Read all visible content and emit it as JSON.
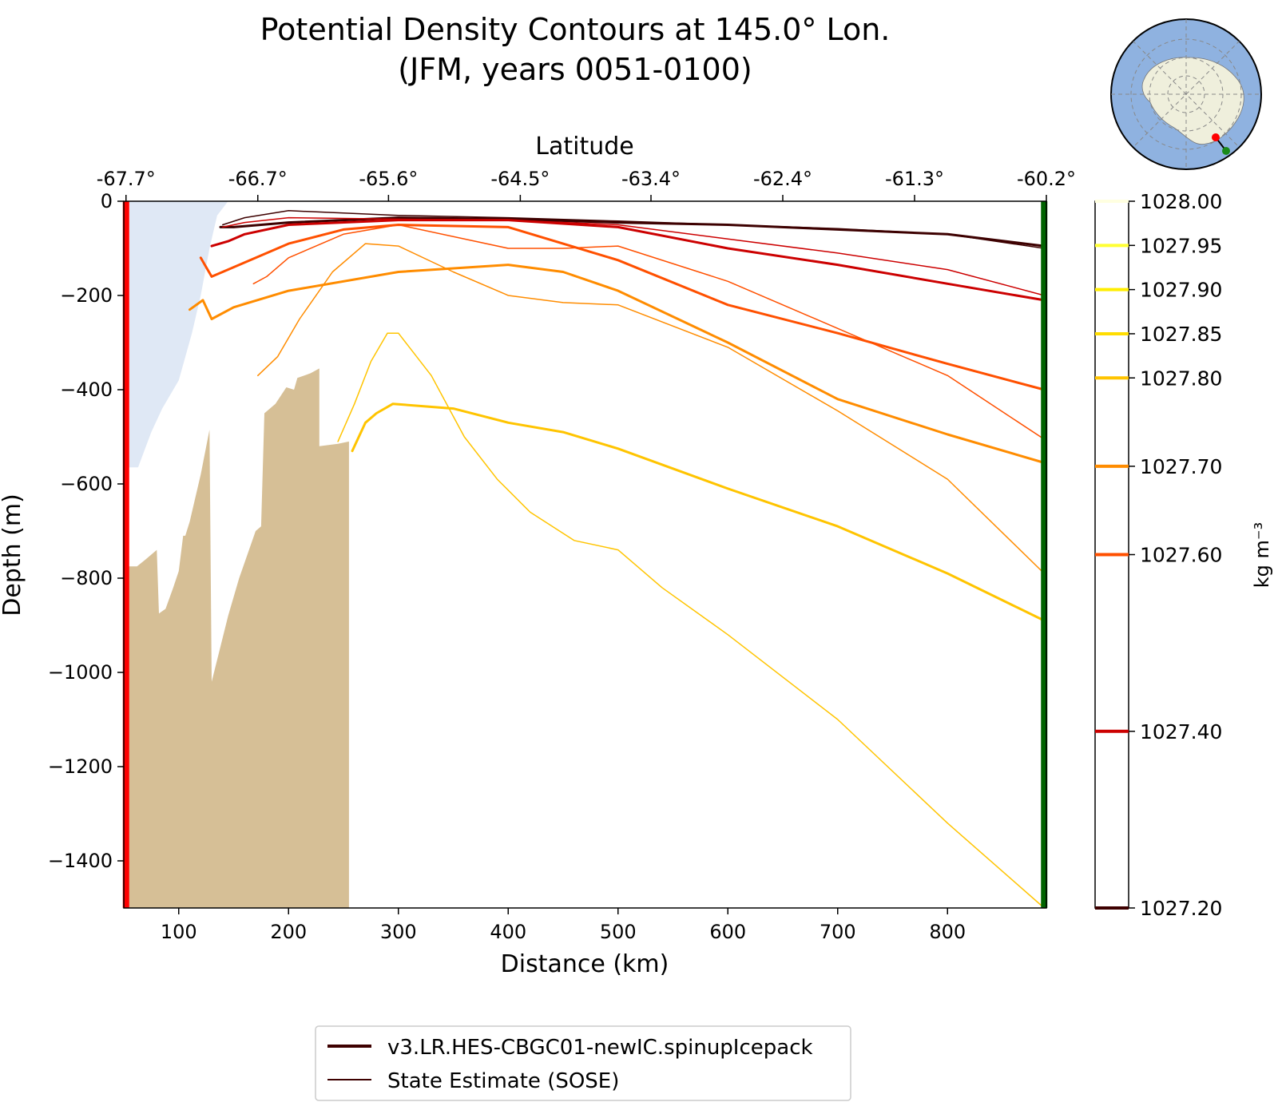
{
  "chart_data": {
    "type": "line",
    "title": "Potential Density Contours at 145.0° Lon.",
    "subtitle": "(JFM, years 0051-0100)",
    "xlabel": "Distance (km)",
    "ylabel": "Depth (m)",
    "top_axis_label": "Latitude",
    "xlim": [
      50,
      890
    ],
    "ylim": [
      -1500,
      0
    ],
    "x_ticks": [
      100,
      200,
      300,
      400,
      500,
      600,
      700,
      800
    ],
    "x_tick_labels": [
      "100",
      "200",
      "300",
      "400",
      "500",
      "600",
      "700",
      "800"
    ],
    "y_ticks": [
      0,
      -200,
      -400,
      -600,
      -800,
      -1000,
      -1200,
      -1400
    ],
    "y_tick_labels": [
      "0",
      "−200",
      "−400",
      "−600",
      "−800",
      "−1000",
      "−1200",
      "−1400"
    ],
    "lat_ticks_km": [
      52,
      172,
      291,
      411,
      530,
      650,
      770,
      890
    ],
    "lat_tick_labels": [
      "-67.7°",
      "-66.7°",
      "-65.6°",
      "-64.5°",
      "-63.4°",
      "-62.4°",
      "-61.3°",
      "-60.2°"
    ],
    "grid": false,
    "colorbar": {
      "label": "kg m⁻³",
      "range": [
        1027.2,
        1028.0
      ],
      "ticks": [
        {
          "value": 1028.0,
          "label": "1028.00",
          "color": "#ffffe0"
        },
        {
          "value": 1027.95,
          "label": "1027.95",
          "color": "#ffff33"
        },
        {
          "value": 1027.9,
          "label": "1027.90",
          "color": "#ffee00"
        },
        {
          "value": 1027.85,
          "label": "1027.85",
          "color": "#ffdd00"
        },
        {
          "value": 1027.8,
          "label": "1027.80",
          "color": "#ffc400"
        },
        {
          "value": 1027.7,
          "label": "1027.70",
          "color": "#ff8c00"
        },
        {
          "value": 1027.6,
          "label": "1027.60",
          "color": "#ff5000"
        },
        {
          "value": 1027.4,
          "label": "1027.40",
          "color": "#cc0000"
        },
        {
          "value": 1027.2,
          "label": "1027.20",
          "color": "#3d0000"
        }
      ]
    },
    "legend": {
      "placement": "bottom-center",
      "entries": [
        {
          "label": "v3.LR.HES-CBGC01-newIC.spinupIcepack",
          "color": "#3d0000",
          "style": "thick"
        },
        {
          "label": "State Estimate (SOSE)",
          "color": "#3d0000",
          "style": "thin"
        }
      ]
    },
    "section_markers": {
      "start_color": "#ff0000",
      "end_color": "#006400",
      "start_km": 52,
      "end_km": 888
    },
    "ice_shelf_color": "#dfe8f5",
    "land_color": "#d6bf96",
    "ice_shelf": [
      [
        52,
        0
      ],
      [
        145,
        0
      ],
      [
        135,
        -30
      ],
      [
        128,
        -100
      ],
      [
        120,
        -200
      ],
      [
        112,
        -280
      ],
      [
        100,
        -380
      ],
      [
        85,
        -440
      ],
      [
        75,
        -490
      ],
      [
        63,
        -565
      ],
      [
        58,
        -565
      ],
      [
        52,
        -565
      ]
    ],
    "bathymetry": [
      [
        52,
        -1500
      ],
      [
        52,
        -775
      ],
      [
        62,
        -775
      ],
      [
        70,
        -760
      ],
      [
        80,
        -740
      ],
      [
        82,
        -875
      ],
      [
        88,
        -865
      ],
      [
        95,
        -820
      ],
      [
        100,
        -785
      ],
      [
        104,
        -710
      ],
      [
        106,
        -710
      ],
      [
        110,
        -680
      ],
      [
        120,
        -580
      ],
      [
        128,
        -485
      ],
      [
        130,
        -1020
      ],
      [
        145,
        -880
      ],
      [
        155,
        -800
      ],
      [
        170,
        -700
      ],
      [
        175,
        -690
      ],
      [
        178,
        -450
      ],
      [
        188,
        -430
      ],
      [
        198,
        -395
      ],
      [
        205,
        -400
      ],
      [
        208,
        -375
      ],
      [
        220,
        -365
      ],
      [
        228,
        -355
      ],
      [
        228,
        -520
      ],
      [
        245,
        -515
      ],
      [
        255,
        -510
      ],
      [
        255,
        -1500
      ]
    ],
    "series": [
      {
        "name": "v3.LR.HES-CBGC01-newIC.spinupIcepack",
        "density": 1027.2,
        "color": "#3d0000",
        "width": 3,
        "x": [
          138,
          150,
          200,
          300,
          400,
          500,
          600,
          700,
          800,
          888
        ],
        "y": [
          -55,
          -55,
          -45,
          -35,
          -38,
          -45,
          -50,
          -60,
          -70,
          -95
        ]
      },
      {
        "name": "v3.LR.HES-CBGC01-newIC.spinupIcepack",
        "density": 1027.4,
        "color": "#cc0000",
        "width": 3,
        "x": [
          130,
          145,
          160,
          200,
          300,
          400,
          500,
          600,
          700,
          800,
          888
        ],
        "y": [
          -95,
          -85,
          -70,
          -50,
          -40,
          -40,
          -55,
          -100,
          -135,
          -175,
          -210
        ]
      },
      {
        "name": "v3.LR.HES-CBGC01-newIC.spinupIcepack",
        "density": 1027.6,
        "color": "#ff5000",
        "width": 3,
        "x": [
          120,
          130,
          150,
          200,
          250,
          300,
          400,
          500,
          600,
          700,
          800,
          888
        ],
        "y": [
          -120,
          -160,
          -140,
          -90,
          -60,
          -50,
          -55,
          -125,
          -220,
          -280,
          -345,
          -400
        ]
      },
      {
        "name": "v3.LR.HES-CBGC01-newIC.spinupIcepack",
        "density": 1027.7,
        "color": "#ff8c00",
        "width": 3,
        "x": [
          110,
          122,
          130,
          150,
          200,
          300,
          400,
          450,
          500,
          600,
          700,
          800,
          888
        ],
        "y": [
          -230,
          -210,
          -250,
          -225,
          -190,
          -150,
          -135,
          -150,
          -190,
          -300,
          -420,
          -495,
          -555
        ]
      },
      {
        "name": "v3.LR.HES-CBGC01-newIC.spinupIcepack",
        "density": 1027.8,
        "color": "#ffc400",
        "width": 3,
        "x": [
          258,
          262,
          270,
          280,
          295,
          350,
          400,
          450,
          500,
          600,
          700,
          800,
          888
        ],
        "y": [
          -530,
          -510,
          -470,
          -450,
          -430,
          -440,
          -470,
          -490,
          -525,
          -610,
          -690,
          -790,
          -890
        ]
      },
      {
        "name": "State Estimate (SOSE)",
        "density": 1027.2,
        "color": "#3d0000",
        "width": 1.5,
        "x": [
          140,
          160,
          200,
          300,
          400,
          500,
          600,
          700,
          800,
          888
        ],
        "y": [
          -50,
          -35,
          -20,
          -30,
          -35,
          -42,
          -50,
          -58,
          -70,
          -100
        ]
      },
      {
        "name": "State Estimate (SOSE)",
        "density": 1027.4,
        "color": "#cc0000",
        "width": 1.5,
        "x": [
          140,
          160,
          200,
          300,
          400,
          500,
          600,
          700,
          800,
          888
        ],
        "y": [
          -55,
          -45,
          -35,
          -38,
          -40,
          -50,
          -80,
          -110,
          -145,
          -200
        ]
      },
      {
        "name": "State Estimate (SOSE)",
        "density": 1027.6,
        "color": "#ff5000",
        "width": 1.5,
        "x": [
          168,
          180,
          200,
          250,
          300,
          400,
          450,
          500,
          600,
          700,
          800,
          888
        ],
        "y": [
          -175,
          -160,
          -120,
          -70,
          -50,
          -100,
          -100,
          -95,
          -170,
          -270,
          -370,
          -505
        ]
      },
      {
        "name": "State Estimate (SOSE)",
        "density": 1027.7,
        "color": "#ff8c00",
        "width": 1.5,
        "x": [
          172,
          190,
          210,
          240,
          270,
          300,
          350,
          400,
          450,
          500,
          600,
          700,
          800,
          888
        ],
        "y": [
          -370,
          -330,
          -250,
          -150,
          -90,
          -95,
          -150,
          -200,
          -215,
          -220,
          -310,
          -445,
          -590,
          -790
        ]
      },
      {
        "name": "State Estimate (SOSE)",
        "density": 1027.8,
        "color": "#ffc400",
        "width": 1.5,
        "x": [
          245,
          260,
          275,
          290,
          300,
          330,
          360,
          390,
          420,
          460,
          500,
          540,
          600,
          700,
          800,
          888
        ],
        "y": [
          -510,
          -430,
          -340,
          -280,
          -280,
          -370,
          -500,
          -590,
          -660,
          -720,
          -740,
          -820,
          -920,
          -1100,
          -1320,
          -1500
        ]
      }
    ]
  }
}
